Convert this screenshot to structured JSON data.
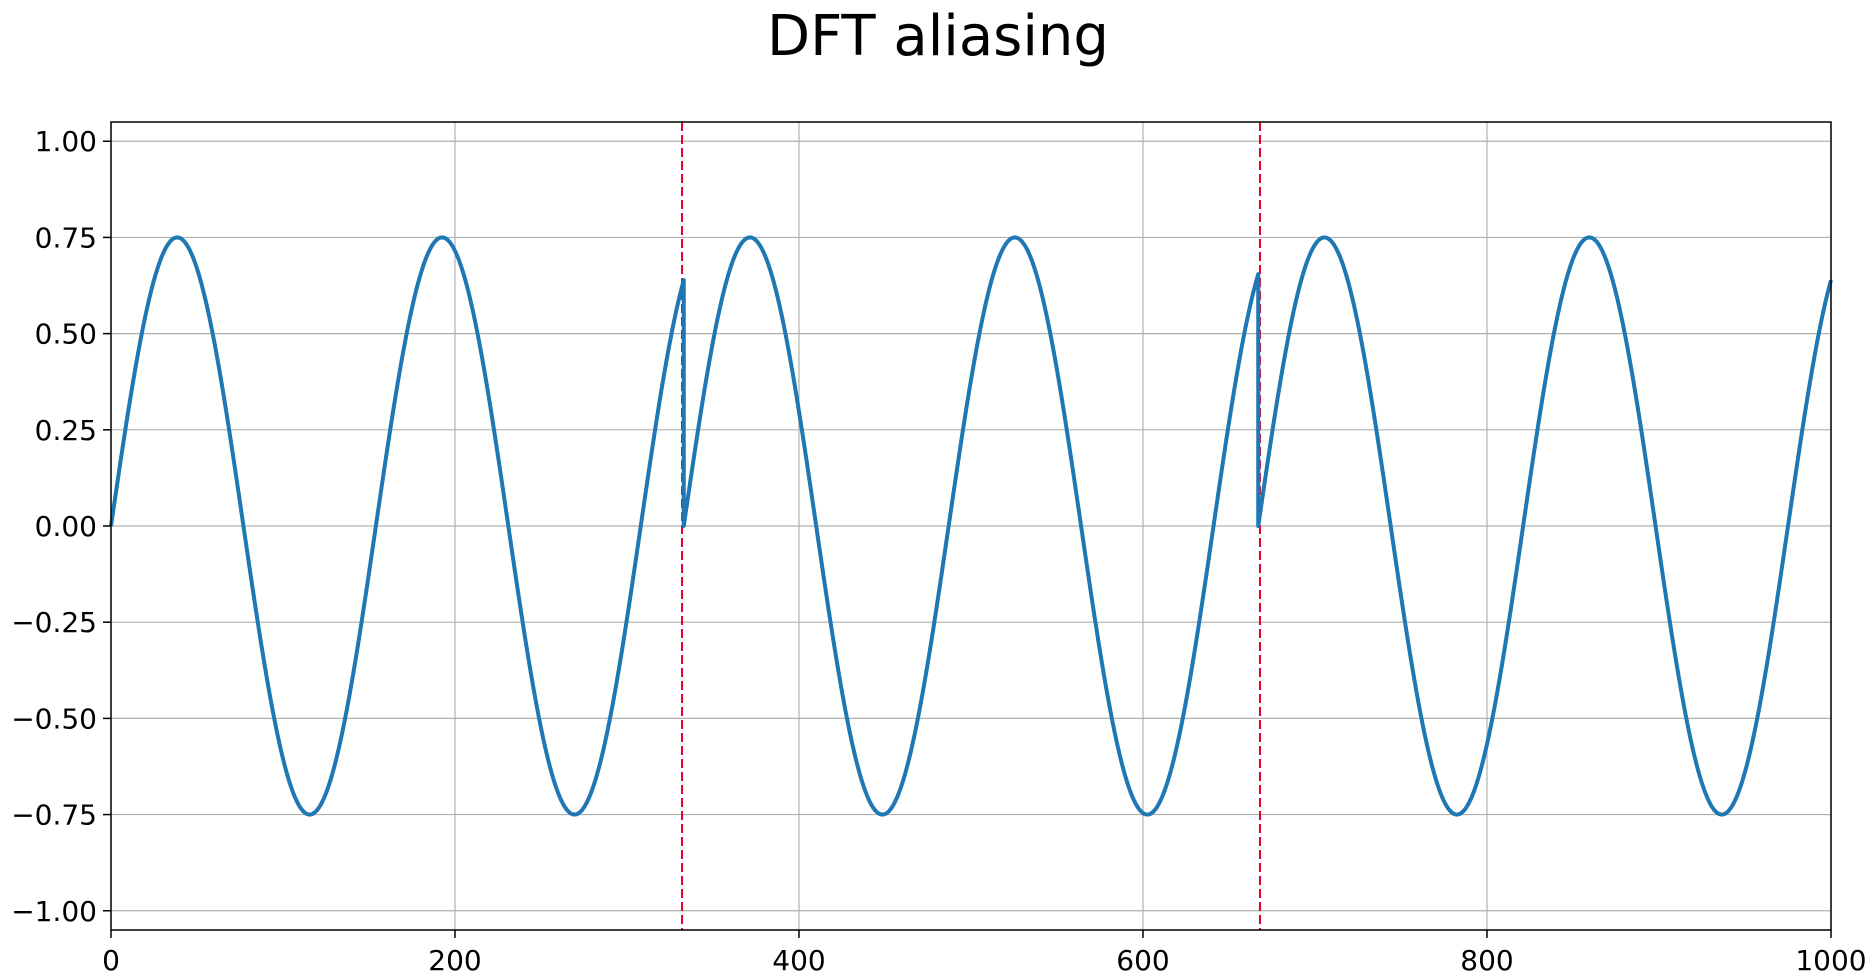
{
  "chart_data": {
    "type": "line",
    "title": "DFT aliasing",
    "xlabel": "",
    "ylabel": "",
    "xlim": [
      0,
      1000
    ],
    "ylim": [
      -1.05,
      1.05
    ],
    "x_ticks": [
      0,
      200,
      400,
      600,
      800,
      1000
    ],
    "x_tick_labels": [
      "0",
      "200",
      "400",
      "600",
      "800",
      "1000"
    ],
    "y_ticks": [
      1.0,
      0.75,
      0.5,
      0.25,
      0.0,
      -0.25,
      -0.5,
      -0.75,
      -1.0
    ],
    "y_tick_labels": [
      "1.00",
      "0.75",
      "0.50",
      "0.25",
      "0.00",
      "−0.25",
      "−0.50",
      "−0.75",
      "−1.00"
    ],
    "grid": true,
    "series": [
      {
        "color": "#1f77b4",
        "amplitude": 0.75,
        "period": 154,
        "segments": [
          [
            0,
            333
          ],
          [
            333,
            667
          ],
          [
            667,
            1000
          ]
        ],
        "repeats_every": 333.33
      }
    ],
    "vlines": [
      {
        "x": 332,
        "color": "#e0002a",
        "style": "dashed"
      },
      {
        "x": 668,
        "color": "#e0002a",
        "style": "dashed"
      }
    ]
  }
}
